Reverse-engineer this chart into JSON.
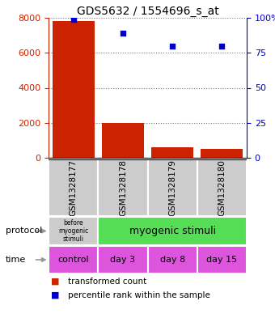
{
  "title": "GDS5632 / 1554696_s_at",
  "categories": [
    "GSM1328177",
    "GSM1328178",
    "GSM1328179",
    "GSM1328180"
  ],
  "bar_values": [
    7800,
    2000,
    600,
    500
  ],
  "scatter_values": [
    99,
    89,
    80,
    80
  ],
  "bar_color": "#cc2200",
  "scatter_color": "#0000cc",
  "ylim_left": [
    0,
    8000
  ],
  "ylim_right": [
    0,
    100
  ],
  "yticks_left": [
    0,
    2000,
    4000,
    6000,
    8000
  ],
  "yticks_right": [
    0,
    25,
    50,
    75,
    100
  ],
  "ytick_labels_right": [
    "0",
    "25",
    "50",
    "75",
    "100%"
  ],
  "protocol_labels": [
    "before\nmyogenic\nstimuli",
    "myogenic stimuli"
  ],
  "protocol_colors": [
    "#cccccc",
    "#55dd55"
  ],
  "time_labels": [
    "control",
    "day 3",
    "day 8",
    "day 15"
  ],
  "time_color": "#dd55dd",
  "legend_items": [
    "transformed count",
    "percentile rank within the sample"
  ],
  "legend_colors": [
    "#cc2200",
    "#0000cc"
  ],
  "title_fontsize": 10,
  "axis_label_color_left": "#cc2200",
  "axis_label_color_right": "#0000cc",
  "bar_width": 0.85,
  "background_color": "#ffffff",
  "sample_box_color": "#cccccc",
  "arrow_color": "#999999"
}
